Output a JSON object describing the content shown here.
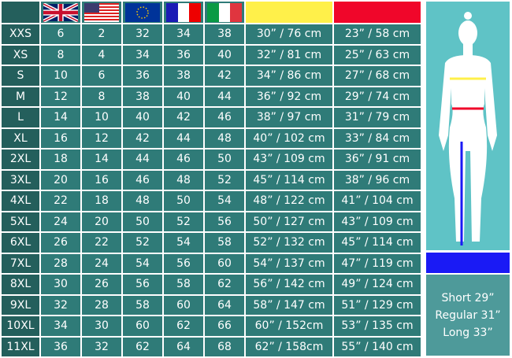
{
  "header": {
    "flags": [
      "uk-flag",
      "us-flag",
      "eu-flag",
      "france-flag",
      "italy-flag"
    ],
    "chest_color": "#fff04a",
    "waist_color": "#f0062a",
    "inseam_color": "#1a1af5"
  },
  "rows": [
    [
      "XXS",
      "6",
      "2",
      "32",
      "34",
      "38",
      "30” / 76 cm",
      "23” / 58 cm"
    ],
    [
      "XS",
      "8",
      "4",
      "34",
      "36",
      "40",
      "32” / 81 cm",
      "25” / 63 cm"
    ],
    [
      "S",
      "10",
      "6",
      "36",
      "38",
      "42",
      "34” / 86 cm",
      "27” / 68 cm"
    ],
    [
      "M",
      "12",
      "8",
      "38",
      "40",
      "44",
      "36” / 92 cm",
      "29” / 74 cm"
    ],
    [
      "L",
      "14",
      "10",
      "40",
      "42",
      "46",
      "38” / 97 cm",
      "31” / 79 cm"
    ],
    [
      "XL",
      "16",
      "12",
      "42",
      "44",
      "48",
      "40” / 102 cm",
      "33” / 84 cm"
    ],
    [
      "2XL",
      "18",
      "14",
      "44",
      "46",
      "50",
      "43” / 109 cm",
      "36” / 91 cm"
    ],
    [
      "3XL",
      "20",
      "16",
      "46",
      "48",
      "52",
      "45” / 114 cm",
      "38” / 96 cm"
    ],
    [
      "4XL",
      "22",
      "18",
      "48",
      "50",
      "54",
      "48” / 122 cm",
      "41” / 104 cm"
    ],
    [
      "5XL",
      "24",
      "20",
      "50",
      "52",
      "56",
      "50” / 127 cm",
      "43” / 109 cm"
    ],
    [
      "6XL",
      "26",
      "22",
      "52",
      "54",
      "58",
      "52” / 132 cm",
      "45” / 114 cm"
    ],
    [
      "7XL",
      "28",
      "24",
      "54",
      "56",
      "60",
      "54” / 137 cm",
      "47” / 119 cm"
    ],
    [
      "8XL",
      "30",
      "26",
      "56",
      "58",
      "62",
      "56” / 142 cm",
      "49” / 124 cm"
    ],
    [
      "9XL",
      "32",
      "28",
      "58",
      "60",
      "64",
      "58” / 147 cm",
      "51” / 129 cm"
    ],
    [
      "10XL",
      "34",
      "30",
      "60",
      "62",
      "66",
      "60” / 152cm",
      "53” / 135 cm"
    ],
    [
      "11XL",
      "36",
      "32",
      "62",
      "64",
      "68",
      "62” / 158cm",
      "55” / 140 cm"
    ]
  ],
  "inseam": [
    "Short 29”",
    "Regular 31”",
    "Long 33”"
  ]
}
